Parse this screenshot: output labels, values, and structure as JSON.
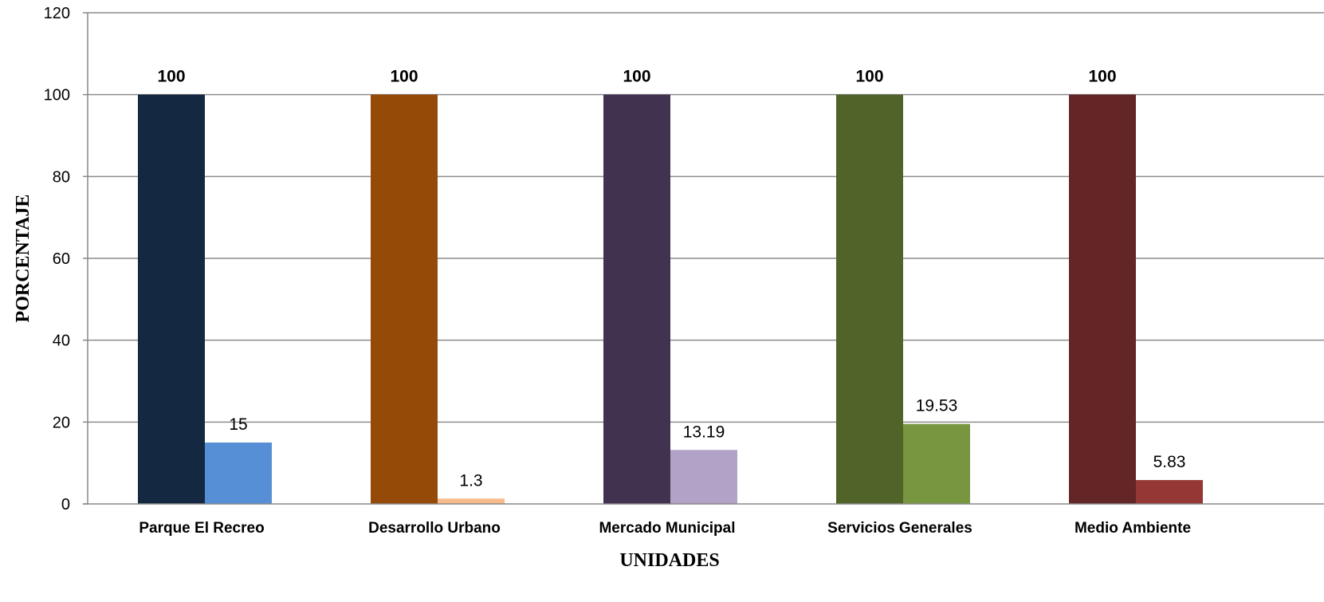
{
  "chart_data": {
    "type": "bar",
    "title": "",
    "xlabel": "UNIDADES",
    "ylabel": "PORCENTAJE",
    "ylim": [
      0,
      120
    ],
    "yticks": [
      0,
      20,
      40,
      60,
      80,
      100,
      120
    ],
    "grid": true,
    "categories": [
      "Parque El Recreo",
      "Desarrollo Urbano",
      "Mercado Municipal",
      "Servicios Generales",
      "Medio Ambiente"
    ],
    "series": [
      {
        "values": [
          100,
          100,
          100,
          100,
          100
        ],
        "labels": [
          "100",
          "100",
          "100",
          "100",
          "100"
        ]
      },
      {
        "values": [
          15,
          1.3,
          13.19,
          19.53,
          5.83
        ],
        "labels": [
          "15",
          "1.3",
          "13.19",
          "19.53",
          "5.83"
        ]
      }
    ],
    "colors": [
      [
        "#142842",
        "#568fd6"
      ],
      [
        "#954a08",
        "#f6ba8b"
      ],
      [
        "#413250",
        "#b3a2c7"
      ],
      [
        "#506328",
        "#789540"
      ],
      [
        "#632525",
        "#953735"
      ]
    ]
  }
}
